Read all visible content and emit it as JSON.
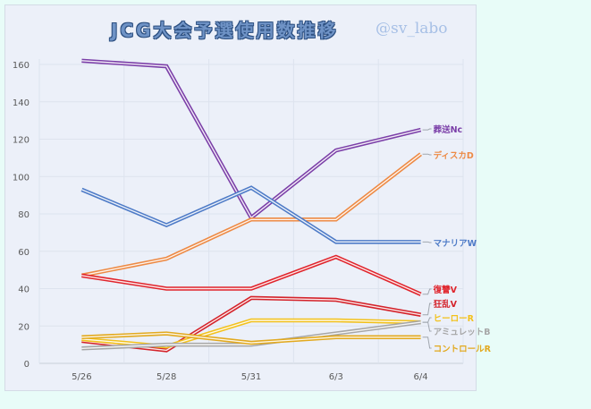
{
  "header": {
    "title": "JCG大会予選使用数推移",
    "handle": "@sv_labo"
  },
  "colors": {
    "background": "#e8fcf8",
    "panel": "#ecf0f9",
    "grid": "#dde3ee"
  },
  "chart_data": {
    "type": "line",
    "title": "JCG大会予選使用数推移",
    "subtitle": "@sv_labo",
    "xlabel": "",
    "ylabel": "",
    "ylim": [
      0,
      160
    ],
    "yticks": [
      0,
      20,
      40,
      60,
      80,
      100,
      120,
      140,
      160
    ],
    "grid": true,
    "legend_position": "inline-right",
    "categories": [
      "5/26",
      "5/28",
      "5/31",
      "6/3",
      "6/4"
    ],
    "series": [
      {
        "name": "葬送Nc",
        "color": "#7b3fa8",
        "values": [
          162,
          159,
          78,
          114,
          125
        ]
      },
      {
        "name": "ディスカD",
        "color": "#ed8a45",
        "values": [
          47,
          56,
          77,
          77,
          112
        ]
      },
      {
        "name": "マナリアW",
        "color": "#4e7bc7",
        "values": [
          93,
          74,
          94,
          65,
          65
        ]
      },
      {
        "name": "復讐V",
        "color": "#e0242c",
        "values": [
          47,
          40,
          40,
          57,
          37
        ]
      },
      {
        "name": "狂乱V",
        "color": "#d4232b",
        "values": [
          12,
          7,
          35,
          34,
          26
        ]
      },
      {
        "name": "ヒーローR",
        "color": "#f2c11c",
        "values": [
          13,
          9,
          23,
          23,
          22
        ]
      },
      {
        "name": "アミュレットB",
        "color": "#a6a6a6",
        "values": [
          8,
          10,
          10,
          16,
          22
        ]
      },
      {
        "name": "コントロールR",
        "color": "#e2a91f",
        "values": [
          14,
          16,
          11,
          14,
          14
        ]
      }
    ]
  }
}
